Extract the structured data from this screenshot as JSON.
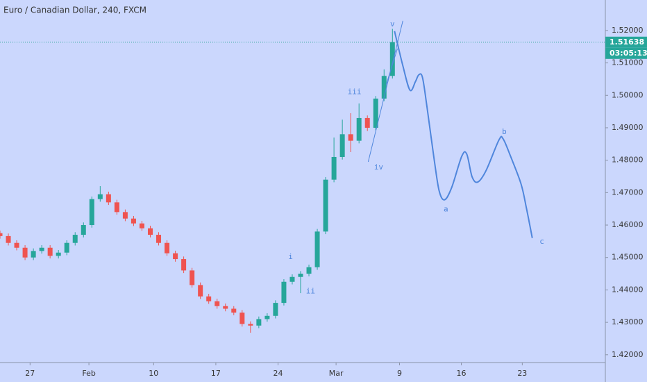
{
  "chart_data": {
    "type": "candlestick",
    "title": "Euro / Canadian Dollar, 240, FXCM",
    "background": "#cbd7fd",
    "up_color": "#26a69a",
    "down_color": "#ef5350",
    "drawing_color": "#4f86dc",
    "xlim": [
      0,
      145
    ],
    "ylim": [
      1.4176,
      1.5294
    ],
    "xticks": [
      {
        "value": 7.2,
        "label": "27"
      },
      {
        "value": 21.3,
        "label": "Feb"
      },
      {
        "value": 36.8,
        "label": "10"
      },
      {
        "value": 51.7,
        "label": "17"
      },
      {
        "value": 66.6,
        "label": "24"
      },
      {
        "value": 80.5,
        "label": "Mar"
      },
      {
        "value": 95.7,
        "label": "9"
      },
      {
        "value": 110.5,
        "label": "16"
      },
      {
        "value": 125.1,
        "label": "23"
      }
    ],
    "yticks": [
      {
        "value": 1.42,
        "label": "1.42000"
      },
      {
        "value": 1.43,
        "label": "1.43000"
      },
      {
        "value": 1.44,
        "label": "1.44000"
      },
      {
        "value": 1.45,
        "label": "1.45000"
      },
      {
        "value": 1.46,
        "label": "1.46000"
      },
      {
        "value": 1.47,
        "label": "1.47000"
      },
      {
        "value": 1.48,
        "label": "1.48000"
      },
      {
        "value": 1.49,
        "label": "1.49000"
      },
      {
        "value": 1.5,
        "label": "1.50000"
      },
      {
        "value": 1.51,
        "label": "1.51000"
      },
      {
        "value": 1.52,
        "label": "1.52000"
      }
    ],
    "last_price": 1.51638,
    "countdown": "03:05:13",
    "candles": {
      "x": [
        0,
        2,
        4,
        6,
        8,
        10,
        12,
        14,
        16,
        18,
        20,
        22,
        24,
        26,
        28,
        30,
        32,
        34,
        36,
        38,
        40,
        42,
        44,
        46,
        48,
        50,
        52,
        54,
        56,
        58,
        60,
        62,
        64,
        66,
        68,
        70,
        72,
        74,
        76,
        78,
        80,
        82,
        84,
        86,
        88,
        90,
        92,
        94
      ],
      "open": [
        1.4575,
        1.4566,
        1.4545,
        1.453,
        1.45,
        1.452,
        1.453,
        1.4505,
        1.4515,
        1.4545,
        1.457,
        1.46,
        1.468,
        1.4695,
        1.467,
        1.464,
        1.462,
        1.4605,
        1.459,
        1.457,
        1.4545,
        1.4513,
        1.4495,
        1.446,
        1.4415,
        1.438,
        1.4365,
        1.435,
        1.4342,
        1.433,
        1.4295,
        1.429,
        1.431,
        1.432,
        1.436,
        1.4425,
        1.444,
        1.445,
        1.447,
        1.458,
        1.474,
        1.481,
        1.488,
        1.486,
        1.493,
        1.49,
        1.499,
        1.506
      ],
      "high": [
        1.4583,
        1.4574,
        1.4553,
        1.4538,
        1.4528,
        1.4538,
        1.4538,
        1.4523,
        1.4553,
        1.4578,
        1.4608,
        1.4688,
        1.472,
        1.4703,
        1.4678,
        1.4648,
        1.4628,
        1.4613,
        1.4598,
        1.4578,
        1.4553,
        1.4521,
        1.4503,
        1.4468,
        1.4423,
        1.4388,
        1.4373,
        1.4358,
        1.435,
        1.4338,
        1.4303,
        1.4318,
        1.4328,
        1.4368,
        1.4433,
        1.4448,
        1.4458,
        1.4478,
        1.4588,
        1.4748,
        1.487,
        1.4925,
        1.4945,
        1.4975,
        1.4938,
        1.4998,
        1.508,
        1.5205
      ],
      "low": [
        1.4558,
        1.4537,
        1.4522,
        1.4492,
        1.4492,
        1.4512,
        1.4497,
        1.4497,
        1.4507,
        1.4537,
        1.4562,
        1.4592,
        1.4672,
        1.4662,
        1.4632,
        1.4612,
        1.4597,
        1.4582,
        1.4562,
        1.4537,
        1.4505,
        1.4487,
        1.4452,
        1.4407,
        1.4372,
        1.4357,
        1.4342,
        1.4334,
        1.4322,
        1.4287,
        1.4268,
        1.4282,
        1.4302,
        1.4312,
        1.4352,
        1.4417,
        1.439,
        1.4442,
        1.4462,
        1.4572,
        1.4732,
        1.4802,
        1.4825,
        1.4852,
        1.489,
        1.4892,
        1.4982,
        1.5052
      ],
      "close": [
        1.4566,
        1.4545,
        1.453,
        1.45,
        1.452,
        1.453,
        1.4505,
        1.4515,
        1.4545,
        1.457,
        1.46,
        1.468,
        1.4695,
        1.467,
        1.464,
        1.462,
        1.4605,
        1.459,
        1.457,
        1.4545,
        1.4513,
        1.4495,
        1.446,
        1.4415,
        1.438,
        1.4365,
        1.435,
        1.4342,
        1.433,
        1.4295,
        1.429,
        1.431,
        1.432,
        1.436,
        1.4425,
        1.444,
        1.445,
        1.447,
        1.458,
        1.474,
        1.481,
        1.488,
        1.486,
        1.493,
        1.49,
        1.499,
        1.506,
        1.5164
      ]
    },
    "projection": {
      "x": [
        94.5,
        96.5,
        98.2,
        99.5,
        100.3,
        101.2,
        102.3,
        104,
        105.2,
        106.5,
        108.2,
        110.6,
        111.8,
        113.1,
        114.5,
        116.5,
        119.5,
        120.5,
        122.3,
        124.8,
        126.1,
        127.5
      ],
      "y": [
        1.5198,
        1.5091,
        1.5016,
        1.5042,
        1.5063,
        1.5055,
        1.4962,
        1.4802,
        1.4705,
        1.4678,
        1.4716,
        1.4812,
        1.4819,
        1.4748,
        1.4733,
        1.477,
        1.4862,
        1.4866,
        1.4812,
        1.4727,
        1.4652,
        1.456
      ]
    },
    "trendlines": [
      {
        "x": [
          88.2,
          96.5
        ],
        "y": [
          1.4795,
          1.523
        ]
      },
      {
        "x": [
          92.5,
          95.2
        ],
        "y": [
          1.5033,
          1.5144
        ]
      }
    ],
    "annotations": [
      {
        "text": "v",
        "x": 94,
        "y": 1.5219
      },
      {
        "text": "iii",
        "x": 84.9,
        "y": 1.501
      },
      {
        "text": "iv",
        "x": 90.7,
        "y": 1.4778
      },
      {
        "text": "i",
        "x": 69.6,
        "y": 1.4502
      },
      {
        "text": "ii",
        "x": 74.4,
        "y": 1.4395
      },
      {
        "text": "a",
        "x": 106.8,
        "y": 1.4648
      },
      {
        "text": "b",
        "x": 120.8,
        "y": 1.4887
      },
      {
        "text": "c",
        "x": 129.8,
        "y": 1.4549
      }
    ]
  }
}
